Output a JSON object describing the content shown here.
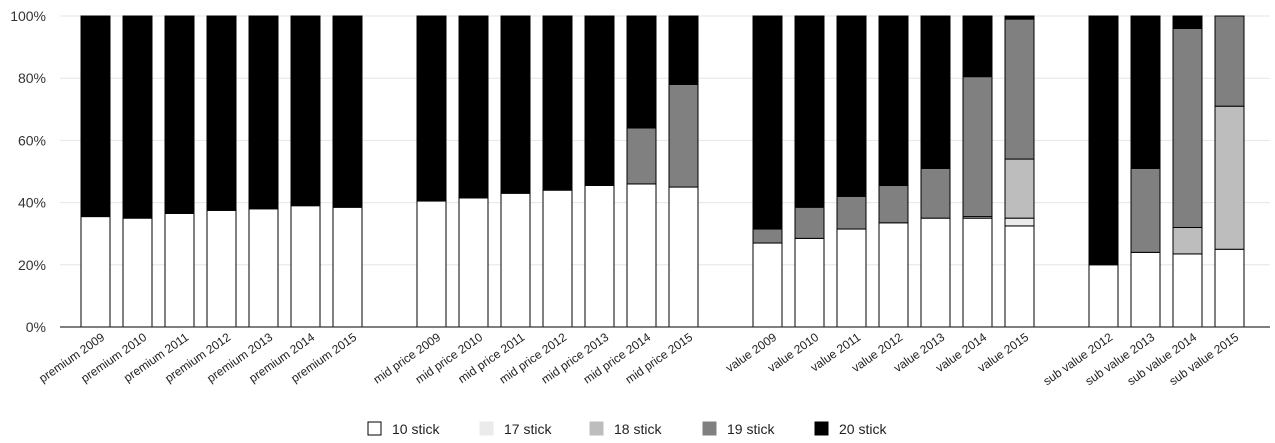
{
  "chart_data": {
    "type": "bar",
    "stacked": true,
    "ylim": [
      0,
      100
    ],
    "y_ticks": [
      0,
      20,
      40,
      60,
      80,
      100
    ],
    "y_tick_labels": [
      "0%",
      "20%",
      "40%",
      "60%",
      "80%",
      "100%"
    ],
    "grid": true,
    "legend_position": "bottom",
    "categories": [
      "premium 2009",
      "premium 2010",
      "premium 2011",
      "premium 2012",
      "premium 2013",
      "premium 2014",
      "premium 2015",
      "",
      "mid price 2009",
      "mid price 2010",
      "mid price 2011",
      "mid price 2012",
      "mid price 2013",
      "mid price 2014",
      "mid price 2015",
      "",
      "value 2009",
      "value 2010",
      "value 2011",
      "value 2012",
      "value 2013",
      "value 2014",
      "value 2015",
      "",
      "sub value 2012",
      "sub value 2013",
      "sub value 2014",
      "sub value 2015"
    ],
    "series": [
      {
        "name": "10 stick",
        "color": "#ffffff",
        "values": [
          35.5,
          35.0,
          36.5,
          37.5,
          38.0,
          39.0,
          38.5,
          0,
          40.5,
          41.5,
          43.0,
          44.0,
          45.5,
          46.0,
          45.0,
          0,
          27.0,
          28.5,
          31.5,
          33.5,
          35.0,
          35.0,
          32.5,
          0,
          20.0,
          24.0,
          23.5,
          25.0
        ]
      },
      {
        "name": "17 stick",
        "color": "#ebebeb",
        "values": [
          0,
          0,
          0,
          0,
          0,
          0,
          0,
          0,
          0,
          0,
          0,
          0,
          0,
          0,
          0,
          0,
          0,
          0,
          0,
          0,
          0,
          0.5,
          2.5,
          0,
          0,
          0,
          0,
          0
        ]
      },
      {
        "name": "18 stick",
        "color": "#bdbdbd",
        "values": [
          0,
          0,
          0,
          0,
          0,
          0,
          0,
          0,
          0,
          0,
          0,
          0,
          0,
          0,
          0,
          0,
          0,
          0,
          0,
          0,
          0,
          0,
          19.0,
          0,
          0,
          0,
          8.5,
          46.0
        ]
      },
      {
        "name": "19 stick",
        "color": "#808080",
        "values": [
          0,
          0,
          0,
          0,
          0,
          0,
          0,
          0,
          0,
          0,
          0,
          0,
          0,
          18.0,
          33.0,
          0,
          4.5,
          10.0,
          10.5,
          12.0,
          16.0,
          45.0,
          45.0,
          0,
          0,
          27.0,
          64.0,
          29.0
        ]
      },
      {
        "name": "20 stick",
        "color": "#000000",
        "values": [
          64.5,
          65.0,
          63.5,
          62.5,
          62.0,
          61.0,
          61.5,
          0,
          59.5,
          58.5,
          57.0,
          56.0,
          54.5,
          36.0,
          22.0,
          0,
          68.5,
          61.5,
          58.0,
          54.5,
          49.0,
          19.5,
          1.0,
          0,
          80.0,
          49.0,
          4.0,
          0
        ]
      }
    ]
  }
}
